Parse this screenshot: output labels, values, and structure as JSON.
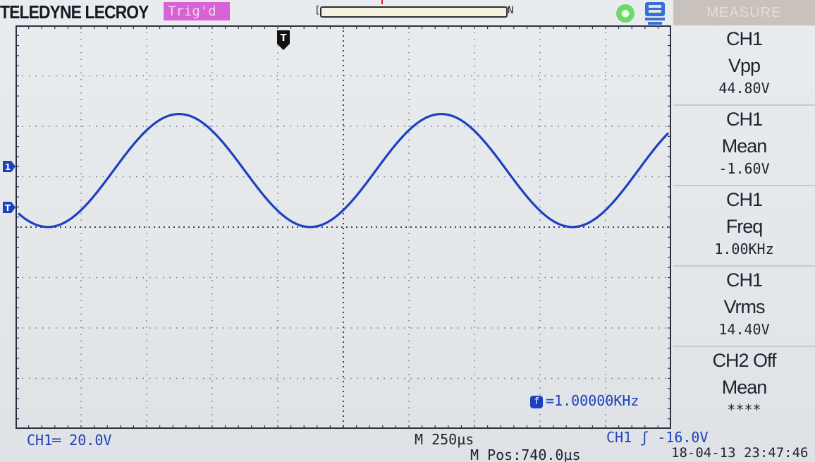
{
  "header": {
    "brand": "TELEDYNE LECROY",
    "trigger_status": "Trig'd",
    "memory_left": "[",
    "memory_right": "N",
    "measure_title": "MEASURE"
  },
  "icons": {
    "run_indicator": "status-dot-icon",
    "usb": "usb-storage-icon",
    "trigger_position": "trigger-position-marker",
    "channel1": "channel-1-marker",
    "trigger_level": "trigger-level-marker"
  },
  "markers": {
    "top_trigger": "T",
    "ch1": "1",
    "trig_level": "T"
  },
  "measurements": [
    {
      "source": "CH1",
      "label": "Vpp",
      "value": "44.80V"
    },
    {
      "source": "CH1",
      "label": "Mean",
      "value": "-1.60V"
    },
    {
      "source": "CH1",
      "label": "Freq",
      "value": "1.00KHz"
    },
    {
      "source": "CH1",
      "label": "Vrms",
      "value": "14.40V"
    },
    {
      "source": "CH2 Off",
      "label": "Mean",
      "value": "****"
    }
  ],
  "status": {
    "ch1_scale": "CH1═ 20.0V",
    "timebase": "M 250µs",
    "horizontal_position": "M Pos:740.0µs",
    "trigger": "CH1 ʃ -16.0V",
    "datetime": "18-04-13 23:47:46",
    "frequency_counter": "=1.00000KHz"
  },
  "waveform": {
    "channel": "CH1",
    "frequency_hz": 1000,
    "vpp_volts": 44.8,
    "mean_volts": -1.6,
    "volts_per_div": 20,
    "time_per_div_us": 250,
    "trigger_level_volts": -16,
    "color": "#1d3fc0"
  },
  "colors": {
    "background": "#e4e7ea",
    "trace": "#1d3fc0",
    "trig_badge": "#d862d6",
    "measure_header": "#c9c2bc",
    "run_indicator": "#6fd86a"
  }
}
